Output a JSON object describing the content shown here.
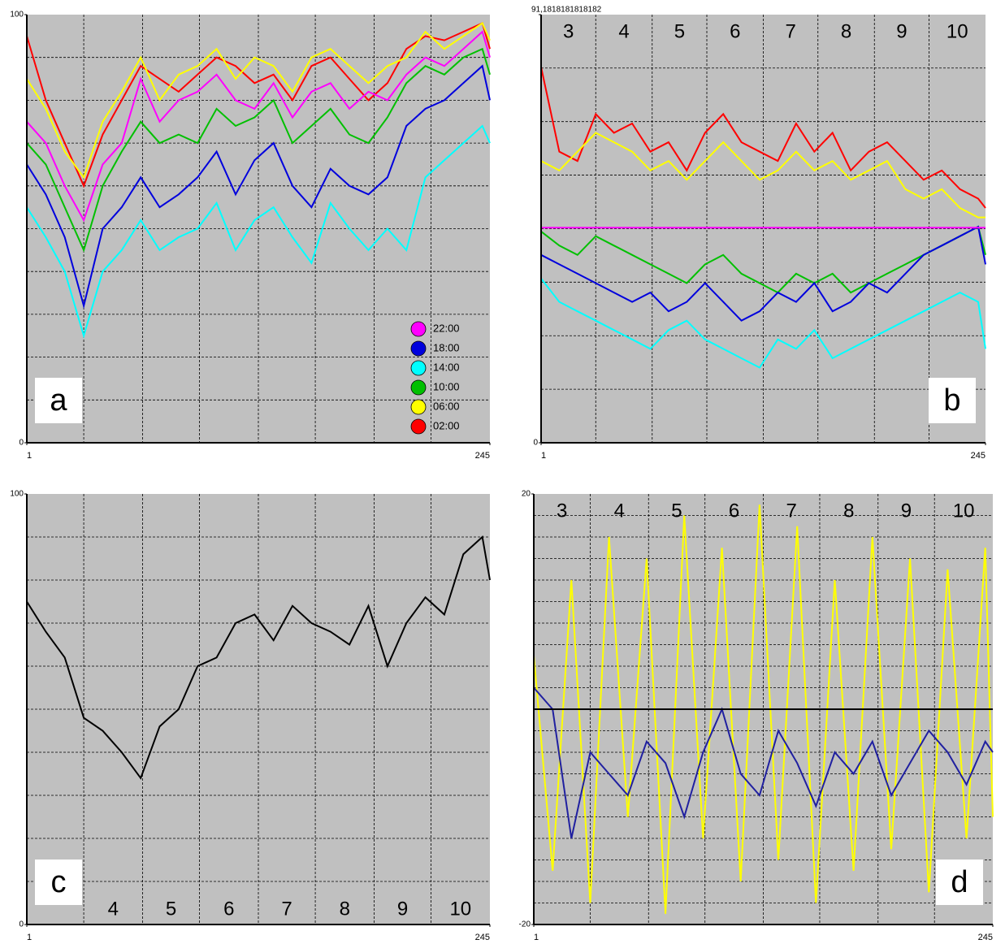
{
  "chart_data": [
    {
      "type": "line",
      "label": "a",
      "label_corner": "bottom-left",
      "legend": "bottom-right",
      "x": [
        1,
        11,
        21,
        31,
        41,
        51,
        61,
        71,
        81,
        91,
        101,
        111,
        121,
        131,
        141,
        151,
        161,
        171,
        181,
        191,
        201,
        211,
        221,
        231,
        241,
        245
      ],
      "xlim": [
        1,
        245
      ],
      "xticks": [
        1,
        245
      ],
      "ylim": [
        0,
        100
      ],
      "yticks": [
        0,
        100
      ],
      "xgrid": [
        31,
        62,
        92,
        123,
        153,
        184,
        214
      ],
      "ygrid": [
        10,
        20,
        30,
        40,
        50,
        60,
        70,
        80,
        90
      ],
      "series": [
        {
          "name": "02:00",
          "color": "#ff0000",
          "values": [
            95,
            80,
            70,
            60,
            72,
            80,
            88,
            85,
            82,
            86,
            90,
            88,
            84,
            86,
            80,
            88,
            90,
            85,
            80,
            84,
            92,
            95,
            94,
            96,
            98,
            92
          ]
        },
        {
          "name": "06:00",
          "color": "#ffff00",
          "values": [
            85,
            78,
            68,
            62,
            75,
            82,
            90,
            80,
            86,
            88,
            92,
            85,
            90,
            88,
            82,
            90,
            92,
            88,
            84,
            88,
            90,
            96,
            92,
            95,
            98,
            94
          ]
        },
        {
          "name": "10:00",
          "color": "#00c000",
          "values": [
            70,
            65,
            55,
            45,
            60,
            68,
            75,
            70,
            72,
            70,
            78,
            74,
            76,
            80,
            70,
            74,
            78,
            72,
            70,
            76,
            84,
            88,
            86,
            90,
            92,
            86
          ]
        },
        {
          "name": "14:00",
          "color": "#00ffff",
          "values": [
            55,
            48,
            40,
            25,
            40,
            45,
            52,
            45,
            48,
            50,
            56,
            45,
            52,
            55,
            48,
            42,
            56,
            50,
            45,
            50,
            45,
            62,
            66,
            70,
            74,
            70
          ]
        },
        {
          "name": "18:00",
          "color": "#0000dd",
          "values": [
            65,
            58,
            48,
            32,
            50,
            55,
            62,
            55,
            58,
            62,
            68,
            58,
            66,
            70,
            60,
            55,
            64,
            60,
            58,
            62,
            74,
            78,
            80,
            84,
            88,
            80
          ]
        },
        {
          "name": "22:00",
          "color": "#ff00ff",
          "values": [
            75,
            70,
            60,
            52,
            65,
            70,
            85,
            75,
            80,
            82,
            86,
            80,
            78,
            84,
            76,
            82,
            84,
            78,
            82,
            80,
            86,
            90,
            88,
            92,
            96,
            90
          ]
        }
      ]
    },
    {
      "type": "line",
      "label": "b",
      "label_corner": "bottom-right",
      "x": [
        1,
        11,
        21,
        31,
        41,
        51,
        61,
        71,
        81,
        91,
        101,
        111,
        121,
        131,
        141,
        151,
        161,
        171,
        181,
        191,
        201,
        211,
        221,
        231,
        241,
        245
      ],
      "xlim": [
        1,
        245
      ],
      "xticks": [
        1,
        245
      ],
      "ylim": [
        0,
        91.1818181818182
      ],
      "yticks": [
        0,
        {
          "value": 91.1818181818182,
          "label": "91,1818181818182"
        }
      ],
      "xgrid": [
        31,
        62,
        92,
        123,
        153,
        184,
        214
      ],
      "ygrid": [
        11.4,
        22.8,
        34.2,
        45.6,
        57,
        68.4,
        79.8
      ],
      "sections": [
        "3",
        "4",
        "5",
        "6",
        "7",
        "8",
        "9",
        "10"
      ],
      "hline": 45.8,
      "hline_color": "#ff00ff",
      "series": [
        {
          "color": "#ff0000",
          "values": [
            80,
            62,
            60,
            70,
            66,
            68,
            62,
            64,
            58,
            66,
            70,
            64,
            62,
            60,
            68,
            62,
            66,
            58,
            62,
            64,
            60,
            56,
            58,
            54,
            52,
            50
          ]
        },
        {
          "color": "#ffff00",
          "values": [
            60,
            58,
            62,
            66,
            64,
            62,
            58,
            60,
            56,
            60,
            64,
            60,
            56,
            58,
            62,
            58,
            60,
            56,
            58,
            60,
            54,
            52,
            54,
            50,
            48,
            48
          ]
        },
        {
          "color": "#00c000",
          "values": [
            45,
            42,
            40,
            44,
            42,
            40,
            38,
            36,
            34,
            38,
            40,
            36,
            34,
            32,
            36,
            34,
            36,
            32,
            34,
            36,
            38,
            40,
            42,
            44,
            46,
            40
          ]
        },
        {
          "color": "#00ffff",
          "values": [
            35,
            30,
            28,
            26,
            24,
            22,
            20,
            24,
            26,
            22,
            20,
            18,
            16,
            22,
            20,
            24,
            18,
            20,
            22,
            24,
            26,
            28,
            30,
            32,
            30,
            20
          ]
        },
        {
          "color": "#0000dd",
          "values": [
            40,
            38,
            36,
            34,
            32,
            30,
            32,
            28,
            30,
            34,
            30,
            26,
            28,
            32,
            30,
            34,
            28,
            30,
            34,
            32,
            36,
            40,
            42,
            44,
            46,
            38
          ]
        }
      ]
    },
    {
      "type": "line",
      "label": "c",
      "label_corner": "bottom-left",
      "x": [
        1,
        11,
        21,
        31,
        41,
        51,
        61,
        71,
        81,
        91,
        101,
        111,
        121,
        131,
        141,
        151,
        161,
        171,
        181,
        191,
        201,
        211,
        221,
        231,
        241,
        245
      ],
      "xlim": [
        1,
        245
      ],
      "xticks": [
        1,
        245
      ],
      "ylim": [
        0,
        100
      ],
      "yticks": [
        0,
        100
      ],
      "xgrid": [
        31,
        62,
        92,
        123,
        153,
        184,
        214
      ],
      "ygrid": [
        10,
        20,
        30,
        40,
        50,
        60,
        70,
        80,
        90
      ],
      "sections": [
        null,
        "4",
        "5",
        "6",
        "7",
        "8",
        "9",
        "10"
      ],
      "sections_at": "bottom",
      "series": [
        {
          "color": "#000000",
          "values": [
            75,
            68,
            62,
            48,
            45,
            40,
            34,
            46,
            50,
            60,
            62,
            70,
            72,
            66,
            74,
            70,
            68,
            65,
            74,
            60,
            70,
            76,
            72,
            86,
            90,
            80
          ]
        }
      ]
    },
    {
      "type": "line",
      "label": "d",
      "label_corner": "bottom-right",
      "x": [
        1,
        11,
        21,
        31,
        41,
        51,
        61,
        71,
        81,
        91,
        101,
        111,
        121,
        131,
        141,
        151,
        161,
        171,
        181,
        191,
        201,
        211,
        221,
        231,
        241,
        245
      ],
      "xlim": [
        1,
        245
      ],
      "xticks": [
        1,
        245
      ],
      "ylim": [
        -20,
        20
      ],
      "yticks": [
        -20,
        20
      ],
      "xgrid": [
        31,
        62,
        92,
        123,
        153,
        184,
        214
      ],
      "ygrid": [
        -18,
        -16,
        -14,
        -12,
        -10,
        -8,
        -6,
        -4,
        -2,
        2,
        4,
        6,
        8,
        10,
        12,
        14,
        16,
        18
      ],
      "sections": [
        "3",
        "4",
        "5",
        "6",
        "7",
        "8",
        "9",
        "10"
      ],
      "hline": 0,
      "hline_color": "#000000",
      "series": [
        {
          "color": "#ffff00",
          "values": [
            5,
            -15,
            12,
            -18,
            16,
            -10,
            14,
            -19,
            18,
            -12,
            15,
            -16,
            19,
            -14,
            17,
            -18,
            12,
            -15,
            16,
            -13,
            14,
            -17,
            13,
            -12,
            15,
            -10
          ]
        },
        {
          "color": "#2020a0",
          "values": [
            2,
            0,
            -12,
            -4,
            -6,
            -8,
            -3,
            -5,
            -10,
            -4,
            0,
            -6,
            -8,
            -2,
            -5,
            -9,
            -4,
            -6,
            -3,
            -8,
            -5,
            -2,
            -4,
            -7,
            -3,
            -4
          ]
        }
      ]
    }
  ]
}
